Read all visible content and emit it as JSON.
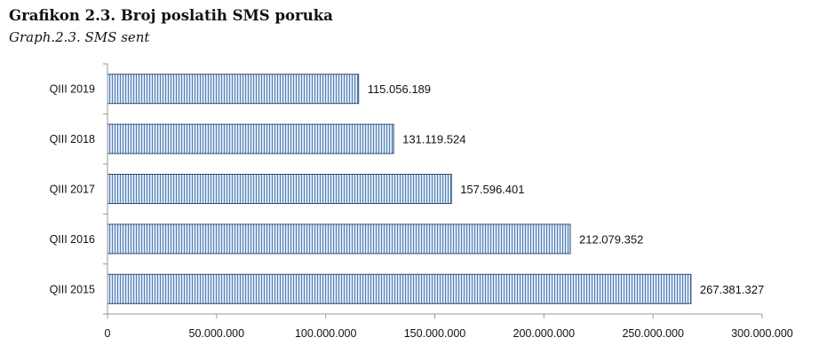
{
  "chart_data": {
    "type": "bar",
    "orientation": "horizontal",
    "title": "Grafikon 2.3. Broj poslatih SMS poruka",
    "subtitle": "Graph.2.3. SMS sent",
    "xlabel": "",
    "ylabel": "",
    "categories": [
      "QIII 2019",
      "QIII 2018",
      "QIII 2017",
      "QIII 2016",
      "QIII 2015"
    ],
    "values": [
      115056189,
      131119524,
      157596401,
      212079352,
      267381327
    ],
    "data_labels": [
      "115.056.189",
      "131.119.524",
      "157.596.401",
      "212.079.352",
      "267.381.327"
    ],
    "xlim": [
      0,
      300000000
    ],
    "xticks": [
      0,
      50000000,
      100000000,
      150000000,
      200000000,
      250000000,
      300000000
    ],
    "xtick_labels": [
      "0",
      "50.000.000",
      "100.000.000",
      "150.000.000",
      "200.000.000",
      "250.000.000",
      "300.000.000"
    ],
    "grid": false,
    "legend": "none",
    "colors": {
      "bar_fill": "#dbe5f1",
      "bar_stripe": "#4f7fb5",
      "bar_border": "#2f4d74",
      "axis": "#9a9a9a"
    }
  }
}
